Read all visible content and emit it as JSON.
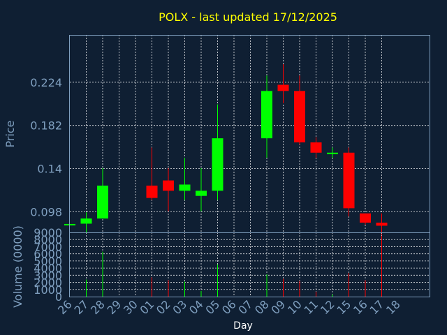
{
  "chart_data": {
    "type": "candlestick",
    "title": "POLX - last updated 17/12/2025",
    "xlabel": "Day",
    "price_panel": {
      "ylabel": "Price",
      "ylim": [
        0.078,
        0.27
      ],
      "ticks": [
        0.098,
        0.14,
        0.182,
        0.224
      ],
      "tick_labels": [
        "0.098",
        "0.14",
        "0.182",
        "0.224"
      ],
      "grid": true
    },
    "volume_panel": {
      "ylabel": "Volume (0000)",
      "ylim": [
        0,
        9000
      ],
      "ticks": [
        0,
        1000,
        2000,
        3000,
        4000,
        5000,
        6000,
        7000,
        8000,
        9000
      ],
      "tick_labels": [
        "0",
        "1000",
        "2000",
        "3000",
        "4000",
        "5000",
        "6000",
        "7000",
        "8000",
        "9000"
      ],
      "grid": true
    },
    "x_tick_labels": [
      "26",
      "27",
      "28",
      "29",
      "30",
      "01",
      "02",
      "03",
      "04",
      "05",
      "06",
      "07",
      "08",
      "09",
      "10",
      "11",
      "12",
      "15",
      "16",
      "17",
      "18"
    ],
    "up_color": "#00ff00",
    "down_color": "#ff0000",
    "candles": [
      {
        "day": "26",
        "open": 0.0862,
        "high": 0.0862,
        "low": 0.0862,
        "close": 0.0862,
        "volume": 0
      },
      {
        "day": "27",
        "open": 0.0865,
        "high": 0.0975,
        "low": 0.0775,
        "close": 0.0915,
        "volume": 2400
      },
      {
        "day": "28",
        "open": 0.0915,
        "high": 0.1405,
        "low": 0.0915,
        "close": 0.1235,
        "volume": 6300
      },
      {
        "day": "01",
        "open": 0.1235,
        "high": 0.1605,
        "low": 0.1095,
        "close": 0.1115,
        "volume": 2700
      },
      {
        "day": "02",
        "open": 0.1285,
        "high": 0.1405,
        "low": 0.0985,
        "close": 0.1185,
        "volume": 2300
      },
      {
        "day": "03",
        "open": 0.1185,
        "high": 0.1505,
        "low": 0.1095,
        "close": 0.1245,
        "volume": 2100
      },
      {
        "day": "04",
        "open": 0.1135,
        "high": 0.1405,
        "low": 0.0985,
        "close": 0.1185,
        "volume": 800
      },
      {
        "day": "05",
        "open": 0.1185,
        "high": 0.2025,
        "low": 0.1095,
        "close": 0.1695,
        "volume": 4500
      },
      {
        "day": "08",
        "open": 0.1695,
        "high": 0.2305,
        "low": 0.1505,
        "close": 0.2155,
        "volume": 3100
      },
      {
        "day": "09",
        "open": 0.2215,
        "high": 0.2415,
        "low": 0.2035,
        "close": 0.2155,
        "volume": 2500
      },
      {
        "day": "10",
        "open": 0.2155,
        "high": 0.2305,
        "low": 0.1635,
        "close": 0.1655,
        "volume": 2200
      },
      {
        "day": "11",
        "open": 0.1655,
        "high": 0.1705,
        "low": 0.1505,
        "close": 0.1555,
        "volume": 700
      },
      {
        "day": "12",
        "open": 0.1555,
        "high": 0.1605,
        "low": 0.1505,
        "close": 0.1555,
        "volume": 300
      },
      {
        "day": "15",
        "open": 0.1555,
        "high": 0.1605,
        "low": 0.0935,
        "close": 0.1015,
        "volume": 3300
      },
      {
        "day": "16",
        "open": 0.0965,
        "high": 0.0965,
        "low": 0.0855,
        "close": 0.0875,
        "volume": 2300
      },
      {
        "day": "17",
        "open": 0.0875,
        "high": 0.0965,
        "low": 0.0745,
        "close": 0.0845,
        "volume": 8500
      }
    ]
  }
}
